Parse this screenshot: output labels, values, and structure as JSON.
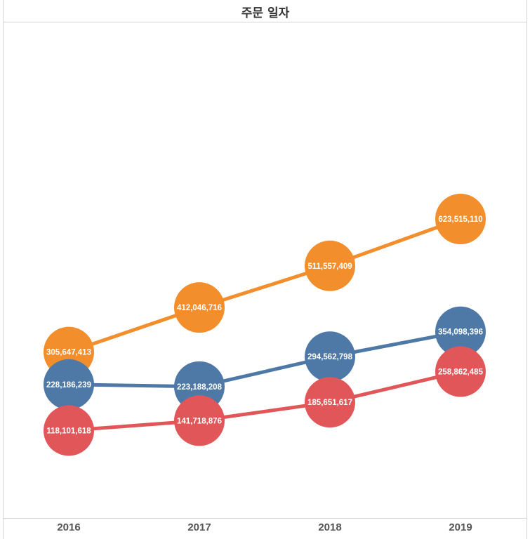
{
  "chart_data": {
    "type": "line",
    "title": "주문 일자",
    "categories": [
      "2016",
      "2017",
      "2018",
      "2019"
    ],
    "series": [
      {
        "color": "#F28E2B",
        "values": [
          305647413,
          412046716,
          511557409,
          623515110
        ],
        "labels": [
          "305,647,413",
          "412,046,716",
          "511,557,409",
          "623,515,110"
        ]
      },
      {
        "color": "#4E79A7",
        "values": [
          228186239,
          223188208,
          294562798,
          354098396
        ],
        "labels": [
          "228,186,239",
          "223,188,208",
          "294,562,798",
          "354,098,396"
        ]
      },
      {
        "color": "#E15759",
        "values": [
          118101618,
          141718876,
          185651617,
          258862485
        ],
        "labels": [
          "118,101,618",
          "141,718,876",
          "185,651,617",
          "258,862,485"
        ]
      }
    ],
    "grid": false,
    "legend": "none"
  }
}
